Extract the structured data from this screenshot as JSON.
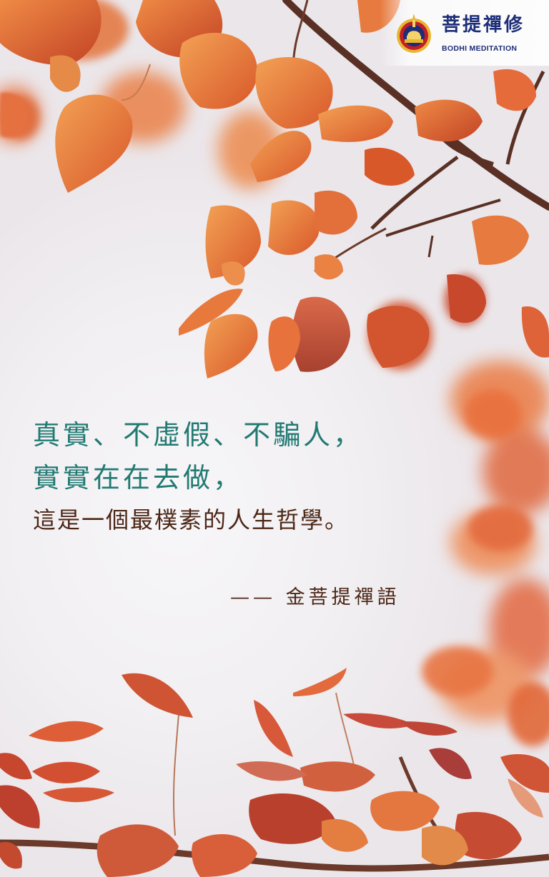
{
  "brand": {
    "name_zh": "菩提禪修",
    "name_en": "BODHI MEDITATION"
  },
  "quote": {
    "line1": "真實、不虛假、不騙人，",
    "line2": "實實在在去做，",
    "line3": "這是一個最樸素的人生哲學。"
  },
  "attribution": "—— 金菩提禪語",
  "colors": {
    "quote_teal": "#227a73",
    "quote_brown": "#4c2616",
    "brand_navy": "#1d2e78",
    "leaf_orange": "#e8753a",
    "leaf_red": "#c9472a"
  }
}
